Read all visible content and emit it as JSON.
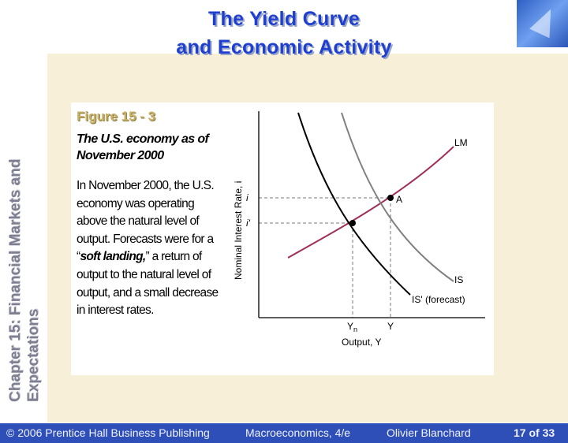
{
  "slide": {
    "title_line1": "The Yield Curve",
    "title_line2": "and Economic Activity",
    "sidebar_text": "Chapter 15: Financial Markets and Expectations"
  },
  "figure": {
    "label": "Figure 15 - 3",
    "subtitle": "The U.S. economy as of November 2000",
    "text_before": "In November 2000, the U.S. economy was operating above the natural level of output. Forecasts were for a “",
    "text_emph": "soft landing,",
    "text_after": "” a return of output to the natural level of output, and a small decrease in interest rates."
  },
  "diagram": {
    "axis_y_label": "Nominal Interest Rate, i",
    "axis_x_label": "Output, Y",
    "curve_lm": "LM",
    "curve_is": "IS",
    "curve_is_forecast": "IS' (forecast)",
    "point_a": "A",
    "tick_i": "i",
    "tick_i_prime": "i'",
    "tick_yn": "Yn",
    "tick_y": "Y",
    "colors": {
      "lm": "#a0305a",
      "is": "#808080",
      "is_forecast": "#000000"
    }
  },
  "footer": {
    "copyright": "© 2006 Prentice Hall Business Publishing",
    "book": "Macroeconomics, 4/e",
    "author": "Olivier Blanchard",
    "page": "17 of 33"
  }
}
